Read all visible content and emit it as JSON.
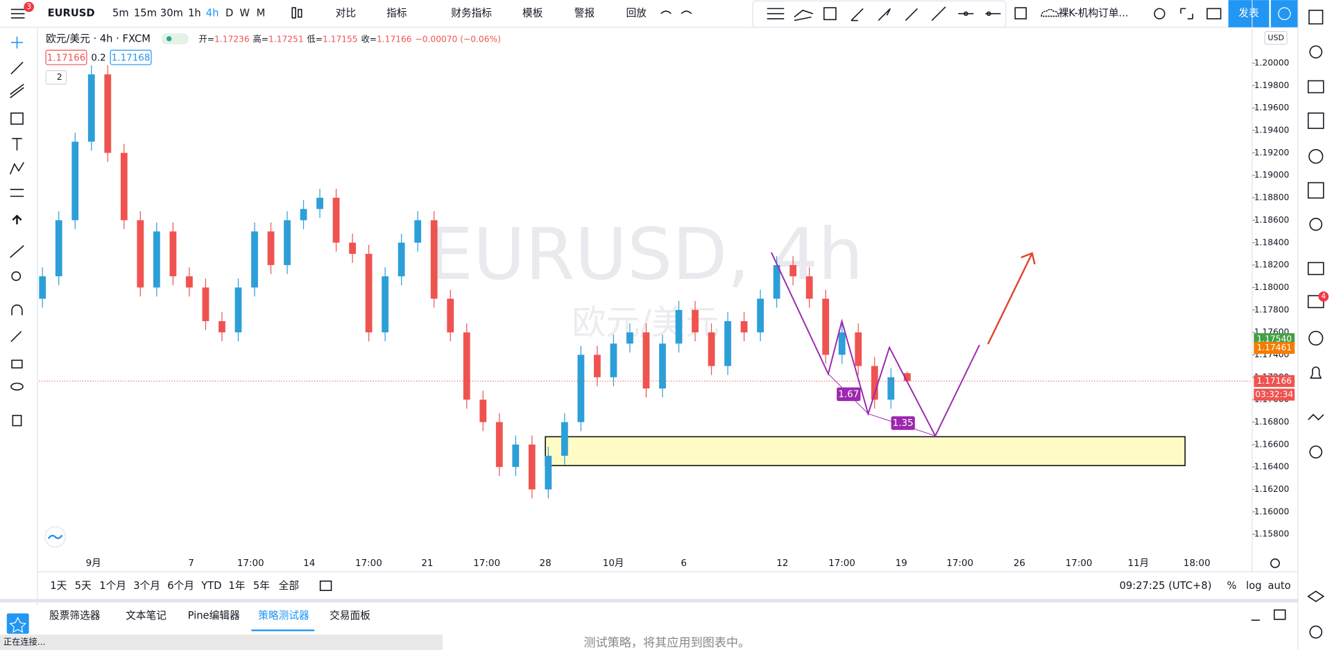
{
  "toolbar": {
    "badge": "3",
    "symbol": "EURUSD",
    "intervals": [
      "5m",
      "15m",
      "30m",
      "1h",
      "4h",
      "D",
      "W",
      "M"
    ],
    "active_interval": "4h",
    "buttons": [
      "对比",
      "指标",
      "财务指标",
      "模板",
      "警报",
      "回放"
    ],
    "template": "裸K-机构订单...",
    "publish": "发表"
  },
  "legend": {
    "name": "欧元/美元",
    "interval": "4h",
    "source": "FXCM",
    "ohlc": [
      {
        "label": "开=",
        "value": 1.17236
      },
      {
        "label": "高=",
        "value": 1.17251
      },
      {
        "label": "低=",
        "value": 1.17155
      },
      {
        "label": "收=",
        "value": 1.17166
      }
    ],
    "change": "−0.00070 (−0.06%)",
    "bid": "1.17166",
    "spread": "0.2",
    "ask": "1.17168",
    "collapsed": "2"
  },
  "chart_data": {
    "type": "candlestick",
    "watermark": "EURUSD, 4h",
    "watermark_sub": "欧元/美元",
    "currency": "USD",
    "up_color": "#2d9fd8",
    "down_color": "#ef5350",
    "open": [
      1.179,
      1.181,
      1.186,
      1.193,
      1.199,
      1.192,
      1.186,
      1.18,
      1.185,
      1.181,
      1.18,
      1.177,
      1.176,
      1.18,
      1.185,
      1.182,
      1.186,
      1.187,
      1.188,
      1.184,
      1.183,
      1.176,
      1.181,
      1.184,
      1.186,
      1.179,
      1.176,
      1.17,
      1.168,
      1.164,
      1.166,
      1.162,
      1.165,
      1.168,
      1.174,
      1.172,
      1.175,
      1.176,
      1.171,
      1.175,
      1.178,
      1.176,
      1.173,
      1.177,
      1.176,
      1.179,
      1.182,
      1.181,
      1.179,
      1.174,
      1.176,
      1.173,
      1.17,
      1.17236
    ],
    "high": [
      1.1818,
      1.1868,
      1.1938,
      1.1998,
      1.1998,
      1.1928,
      1.1868,
      1.1858,
      1.1858,
      1.1818,
      1.1808,
      1.1778,
      1.1808,
      1.1858,
      1.1858,
      1.1868,
      1.1878,
      1.1888,
      1.1888,
      1.1848,
      1.1838,
      1.1818,
      1.1848,
      1.1868,
      1.1868,
      1.1798,
      1.1768,
      1.1708,
      1.1688,
      1.1668,
      1.1668,
      1.1658,
      1.1688,
      1.1748,
      1.1748,
      1.1758,
      1.1768,
      1.1768,
      1.1758,
      1.1788,
      1.1788,
      1.1768,
      1.1778,
      1.1778,
      1.1798,
      1.1828,
      1.1828,
      1.1818,
      1.1798,
      1.1768,
      1.1768,
      1.1738,
      1.1728,
      1.17251
    ],
    "low": [
      1.1782,
      1.1802,
      1.1852,
      1.1922,
      1.1912,
      1.1852,
      1.1792,
      1.1792,
      1.1802,
      1.1792,
      1.1762,
      1.1752,
      1.1752,
      1.1792,
      1.1812,
      1.1812,
      1.1852,
      1.1862,
      1.1832,
      1.1822,
      1.1752,
      1.1752,
      1.1802,
      1.1832,
      1.1782,
      1.1752,
      1.1692,
      1.1672,
      1.1632,
      1.1632,
      1.1612,
      1.1612,
      1.1642,
      1.1672,
      1.1712,
      1.1712,
      1.1742,
      1.1702,
      1.1702,
      1.1742,
      1.1752,
      1.1722,
      1.1722,
      1.1752,
      1.1752,
      1.1782,
      1.1802,
      1.1782,
      1.1732,
      1.1732,
      1.1722,
      1.1692,
      1.1692,
      1.17155
    ],
    "close": [
      1.181,
      1.186,
      1.193,
      1.199,
      1.192,
      1.186,
      1.18,
      1.185,
      1.181,
      1.18,
      1.177,
      1.176,
      1.18,
      1.185,
      1.182,
      1.186,
      1.187,
      1.188,
      1.184,
      1.183,
      1.176,
      1.181,
      1.184,
      1.186,
      1.179,
      1.176,
      1.17,
      1.168,
      1.164,
      1.166,
      1.162,
      1.165,
      1.168,
      1.174,
      1.172,
      1.175,
      1.176,
      1.171,
      1.175,
      1.178,
      1.176,
      1.173,
      1.177,
      1.176,
      1.179,
      1.182,
      1.181,
      1.179,
      1.174,
      1.176,
      1.173,
      1.17,
      1.172,
      1.17166
    ],
    "ylim": [
      1.1564,
      1.2032
    ],
    "yticks": [
      {
        "value": 1.158,
        "label": "1.15800"
      },
      {
        "value": 1.16,
        "label": "1.16000"
      },
      {
        "value": 1.162,
        "label": "1.16200"
      },
      {
        "value": 1.164,
        "label": "1.16400"
      },
      {
        "value": 1.166,
        "label": "1.16600"
      },
      {
        "value": 1.168,
        "label": "1.16800"
      },
      {
        "value": 1.17,
        "label": "1.17000"
      },
      {
        "value": 1.172,
        "label": "1.17200"
      },
      {
        "value": 1.174,
        "label": "1.17400"
      },
      {
        "value": 1.176,
        "label": "1.17600"
      },
      {
        "value": 1.178,
        "label": "1.17800"
      },
      {
        "value": 1.18,
        "label": "1.18000"
      },
      {
        "value": 1.182,
        "label": "1.18200"
      },
      {
        "value": 1.184,
        "label": "1.18400"
      },
      {
        "value": 1.186,
        "label": "1.18600"
      },
      {
        "value": 1.188,
        "label": "1.18800"
      },
      {
        "value": 1.19,
        "label": "1.19000"
      },
      {
        "value": 1.192,
        "label": "1.19200"
      },
      {
        "value": 1.194,
        "label": "1.19400"
      },
      {
        "value": 1.196,
        "label": "1.19600"
      },
      {
        "value": 1.198,
        "label": "1.19800"
      },
      {
        "value": 1.2,
        "label": "1.20000"
      }
    ],
    "price_labels": [
      {
        "value": 1.1754,
        "label": "1.17540",
        "color": "#43a047"
      },
      {
        "value": 1.17461,
        "label": "1.17461",
        "color": "#f57c00"
      },
      {
        "value": 1.17166,
        "label": "1.17166",
        "color": "#ef5350"
      }
    ],
    "countdown": "03:32:34",
    "x_labels": [
      "9月",
      "7",
      "17:00",
      "14",
      "17:00",
      "21",
      "17:00",
      "28",
      "10月",
      "6",
      "12",
      "17:00",
      "19",
      "17:00",
      "26",
      "17:00",
      "11月",
      "18:00"
    ],
    "pattern_labels": [
      "1.67",
      "1.35"
    ]
  },
  "bottom": {
    "ranges": [
      "1天",
      "5天",
      "1个月",
      "3个月",
      "6个月",
      "YTD",
      "1年",
      "5年",
      "全部"
    ],
    "clock": "09:27:25 (UTC+8)",
    "options": [
      "%",
      "log",
      "auto"
    ],
    "tabs": [
      "股票筛选器",
      "文本笔记",
      "Pine编辑器",
      "策略测试器",
      "交易面板"
    ],
    "active_tab": "策略测试器",
    "status": "正在连接...",
    "hint": "测试策略，将其应用到图表中。"
  },
  "sidebar": {
    "badge": "4"
  }
}
